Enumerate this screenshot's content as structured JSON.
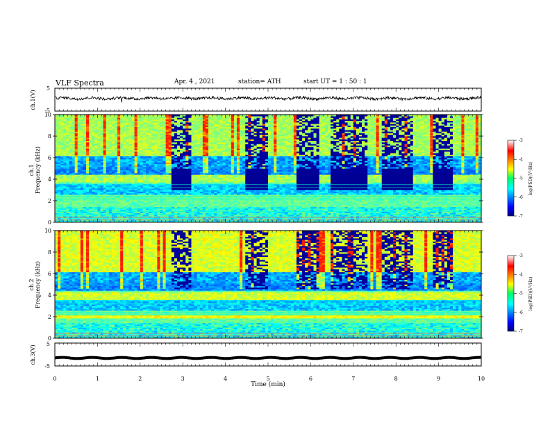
{
  "header": {
    "title": "VLF  Spectra",
    "date": "Apr. 4   ,  2021",
    "station": "station= ATH",
    "start_ut": "start  UT  =   1 : 50 : 1"
  },
  "chart_data": [
    {
      "type": "line",
      "panel": "ch1-waveform",
      "ylabel": "ch.1(V)",
      "ylim": [
        -5,
        5
      ],
      "yticks": [
        "5",
        "-5"
      ],
      "xlim": [
        0,
        10
      ],
      "baseline": 0.6
    },
    {
      "type": "heatmap",
      "panel": "ch1-spectrogram",
      "ylabel": "ch.1\nFrequency  (kHz)",
      "ylim": [
        0,
        10
      ],
      "yticks": [
        "0",
        "2",
        "4",
        "6",
        "8",
        "10"
      ],
      "xlim": [
        0,
        10
      ],
      "colorbar": {
        "label": "log(PSD)(V²/Hz)",
        "range": [
          -7,
          -3
        ],
        "ticks": [
          "-3",
          "-4",
          "-5",
          "-6",
          "-7"
        ]
      },
      "transmitter_off_intervals_min": [
        [
          2.72,
          3.2
        ],
        [
          4.45,
          5.0
        ],
        [
          5.65,
          6.2
        ],
        [
          6.5,
          7.3
        ],
        [
          7.7,
          8.4
        ],
        [
          8.85,
          9.3
        ]
      ]
    },
    {
      "type": "heatmap",
      "panel": "ch2-spectrogram",
      "ylabel": "ch.2\nFrequency  (kHz)",
      "ylim": [
        0,
        10
      ],
      "yticks": [
        "0",
        "2",
        "4",
        "6",
        "8",
        "10"
      ],
      "xlim": [
        0,
        10
      ],
      "colorbar": {
        "label": "log(PSD)(V²/Hz)",
        "range": [
          -7,
          -3
        ],
        "ticks": [
          "-3",
          "-4",
          "-5",
          "-6",
          "-7"
        ]
      }
    },
    {
      "type": "line",
      "panel": "ch3-waveform",
      "ylabel": "ch.3(V)",
      "ylim": [
        -5,
        5
      ],
      "yticks": [
        "5",
        "-5"
      ],
      "xlim": [
        0,
        10
      ],
      "baseline": -1.5
    }
  ],
  "xaxis": {
    "label": "Time  (min)",
    "ticks": [
      "0",
      "1",
      "2",
      "3",
      "4",
      "5",
      "6",
      "7",
      "8",
      "9",
      "10"
    ]
  }
}
